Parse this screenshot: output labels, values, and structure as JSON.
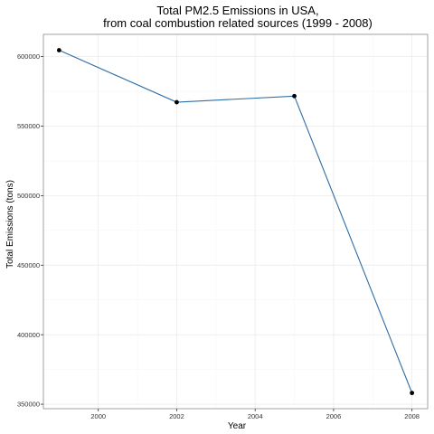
{
  "chart_data": {
    "type": "line",
    "title": "Total PM2.5 Emissions in USA,",
    "subtitle": "from coal combustion related sources (1999 - 2008)",
    "xlabel": "Year",
    "ylabel": "Total Emissions (tons)",
    "x": [
      1999,
      2002,
      2005,
      2008
    ],
    "series": [
      {
        "values": [
          604600,
          567200,
          571600,
          358100
        ]
      }
    ],
    "xlim": [
      1998.6,
      2008.4
    ],
    "ylim": [
      346800,
      616000
    ],
    "x_ticks": [
      2000,
      2002,
      2004,
      2006,
      2008
    ],
    "x_tick_labels": [
      "2000",
      "2002",
      "2004",
      "2006",
      "2008"
    ],
    "y_ticks": [
      350000,
      400000,
      450000,
      500000,
      550000,
      600000
    ],
    "y_tick_labels": [
      "350000",
      "400000",
      "450000",
      "500000",
      "550000",
      "600000"
    ],
    "grid": true,
    "legend": "none",
    "colors": {
      "line": "#2f6da6",
      "point": "#000000",
      "grid_major": "#ebebeb",
      "grid_minor": "#f4f4f4",
      "panel_border": "#8c8c8c"
    }
  }
}
